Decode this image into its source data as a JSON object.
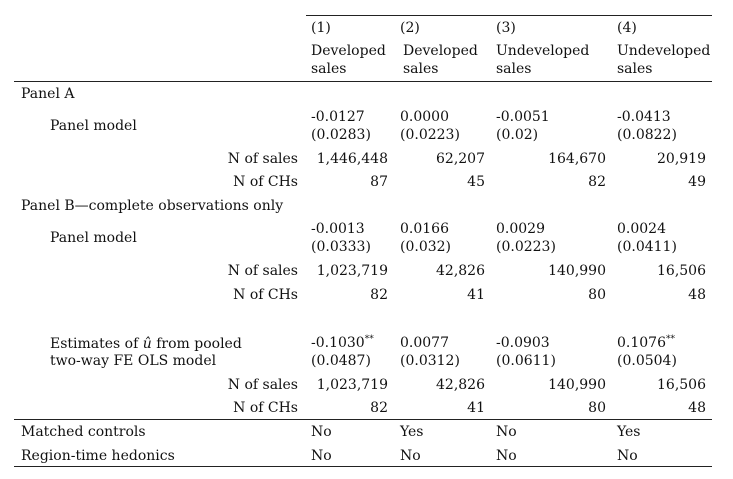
{
  "columns": [
    {
      "num": "(1)",
      "line1": "Developed",
      "line2": "sales"
    },
    {
      "num": "(2)",
      "line1": "Developed",
      "line2": "sales"
    },
    {
      "num": "(3)",
      "line1": "Undeveloped",
      "line2": "sales"
    },
    {
      "num": "(4)",
      "line1": "Undeveloped",
      "line2": "sales"
    }
  ],
  "panel_a": {
    "title": "Panel A",
    "model_label": "Panel model",
    "coef": [
      "-0.0127",
      "0.0000",
      "-0.0051",
      "-0.0413"
    ],
    "se": [
      "(0.0283)",
      "(0.0223)",
      "(0.02)",
      "(0.0822)"
    ],
    "n_sales_label": "N of sales",
    "n_sales": [
      "1,446,448",
      "62,207",
      "164,670",
      "20,919"
    ],
    "n_chs_label": "N of CHs",
    "n_chs": [
      "87",
      "45",
      "82",
      "49"
    ]
  },
  "panel_b": {
    "title": "Panel B—complete observations only",
    "model_label": "Panel model",
    "coef": [
      "-0.0013",
      "0.0166",
      "0.0029",
      "0.0024"
    ],
    "se": [
      "(0.0333)",
      "(0.032)",
      "(0.0223)",
      "(0.0411)"
    ],
    "n_sales_label": "N of sales",
    "n_sales": [
      "1,023,719",
      "42,826",
      "140,990",
      "16,506"
    ],
    "n_chs_label": "N of CHs",
    "n_chs": [
      "82",
      "41",
      "80",
      "48"
    ]
  },
  "pooled": {
    "label_line1_pre": "Estimates of ",
    "label_hat": "û",
    "label_line1_post": " from pooled",
    "label_line2": "two-way FE OLS model",
    "coef": [
      "-0.1030",
      "0.0077",
      "-0.0903",
      "0.1076"
    ],
    "stars": [
      "**",
      "",
      "",
      "**"
    ],
    "se": [
      "(0.0487)",
      "(0.0312)",
      "(0.0611)",
      "(0.0504)"
    ],
    "n_sales_label": "N of sales",
    "n_sales": [
      "1,023,719",
      "42,826",
      "140,990",
      "16,506"
    ],
    "n_chs_label": "N of CHs",
    "n_chs": [
      "82",
      "41",
      "80",
      "48"
    ]
  },
  "footer": {
    "matched_label": "Matched controls",
    "matched": [
      "No",
      "Yes",
      "No",
      "Yes"
    ],
    "hedonics_label": "Region-time hedonics",
    "hedonics": [
      "No",
      "No",
      "No",
      "No"
    ]
  }
}
